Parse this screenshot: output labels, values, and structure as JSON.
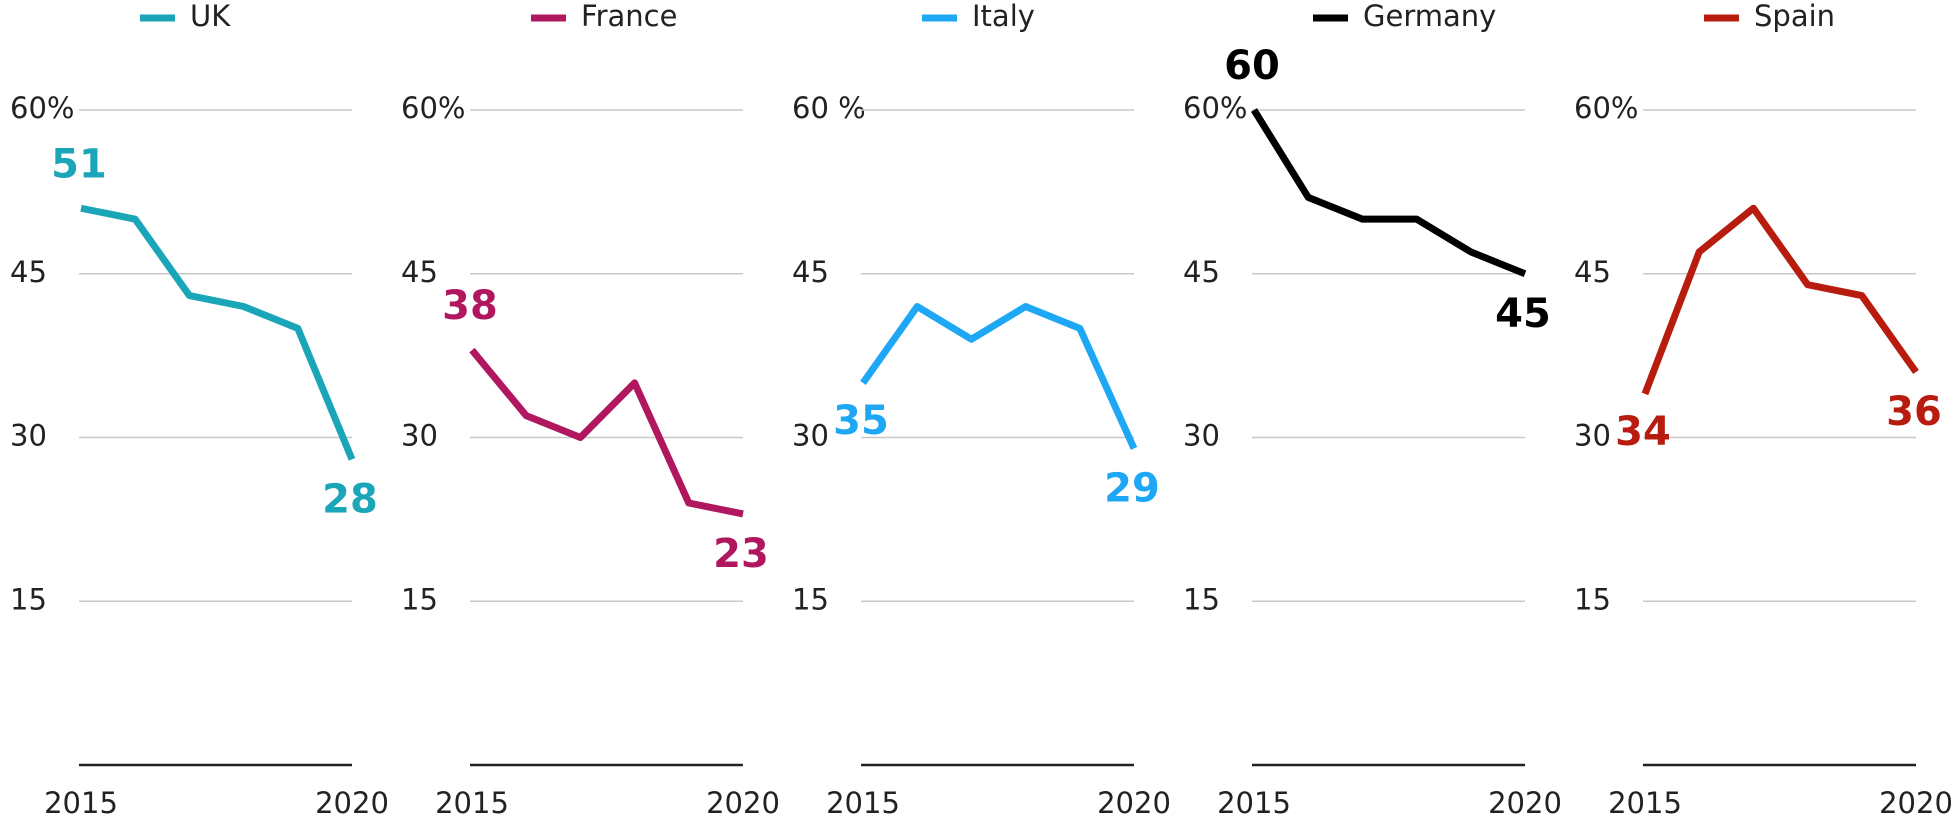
{
  "chart_data": [
    {
      "type": "line",
      "x": [
        2015,
        2016,
        2017,
        2018,
        2019,
        2020
      ],
      "xlim": [
        2015,
        2020
      ],
      "xticks": [
        2015,
        2020
      ],
      "ylim": [
        0,
        60
      ],
      "yticks": [
        15,
        30,
        45,
        {
          "value": 60,
          "label": "60%"
        }
      ],
      "grid": true,
      "series": [
        {
          "name": "UK",
          "color": "#1aa5b8",
          "values": [
            51,
            50,
            43,
            42,
            40,
            28
          ]
        }
      ]
    },
    {
      "type": "line",
      "x": [
        2015,
        2016,
        2017,
        2018,
        2019,
        2020
      ],
      "xlim": [
        2015,
        2020
      ],
      "xticks": [
        2015,
        2020
      ],
      "ylim": [
        0,
        60
      ],
      "yticks": [
        15,
        30,
        45,
        {
          "value": 60,
          "label": "60%"
        }
      ],
      "grid": true,
      "series": [
        {
          "name": "France",
          "color": "#b0175f",
          "values": [
            38,
            32,
            30,
            35,
            24,
            23
          ]
        }
      ]
    },
    {
      "type": "line",
      "x": [
        2015,
        2016,
        2017,
        2018,
        2019,
        2020
      ],
      "xlim": [
        2015,
        2020
      ],
      "xticks": [
        2015,
        2020
      ],
      "ylim": [
        0,
        60
      ],
      "yticks": [
        15,
        30,
        45,
        {
          "value": 60,
          "label": "60 %"
        }
      ],
      "grid": true,
      "series": [
        {
          "name": "Italy",
          "color": "#1ea7f5",
          "values": [
            35,
            42,
            39,
            42,
            40,
            29
          ]
        }
      ]
    },
    {
      "type": "line",
      "x": [
        2015,
        2016,
        2017,
        2018,
        2019,
        2020
      ],
      "xlim": [
        2015,
        2020
      ],
      "xticks": [
        2015,
        2020
      ],
      "ylim": [
        0,
        60
      ],
      "yticks": [
        15,
        30,
        45,
        {
          "value": 60,
          "label": "60%"
        }
      ],
      "grid": true,
      "series": [
        {
          "name": "Germany",
          "color": "#000000",
          "values": [
            60,
            52,
            50,
            50,
            47,
            45
          ]
        }
      ]
    },
    {
      "type": "line",
      "x": [
        2015,
        2016,
        2017,
        2018,
        2019,
        2020
      ],
      "xlim": [
        2015,
        2020
      ],
      "xticks": [
        2015,
        2020
      ],
      "ylim": [
        0,
        60
      ],
      "yticks": [
        15,
        30,
        45,
        {
          "value": 60,
          "label": "60%"
        }
      ],
      "grid": true,
      "series": [
        {
          "name": "Spain",
          "color": "#b81c0e",
          "values": [
            34,
            47,
            51,
            44,
            43,
            36
          ]
        }
      ]
    }
  ]
}
